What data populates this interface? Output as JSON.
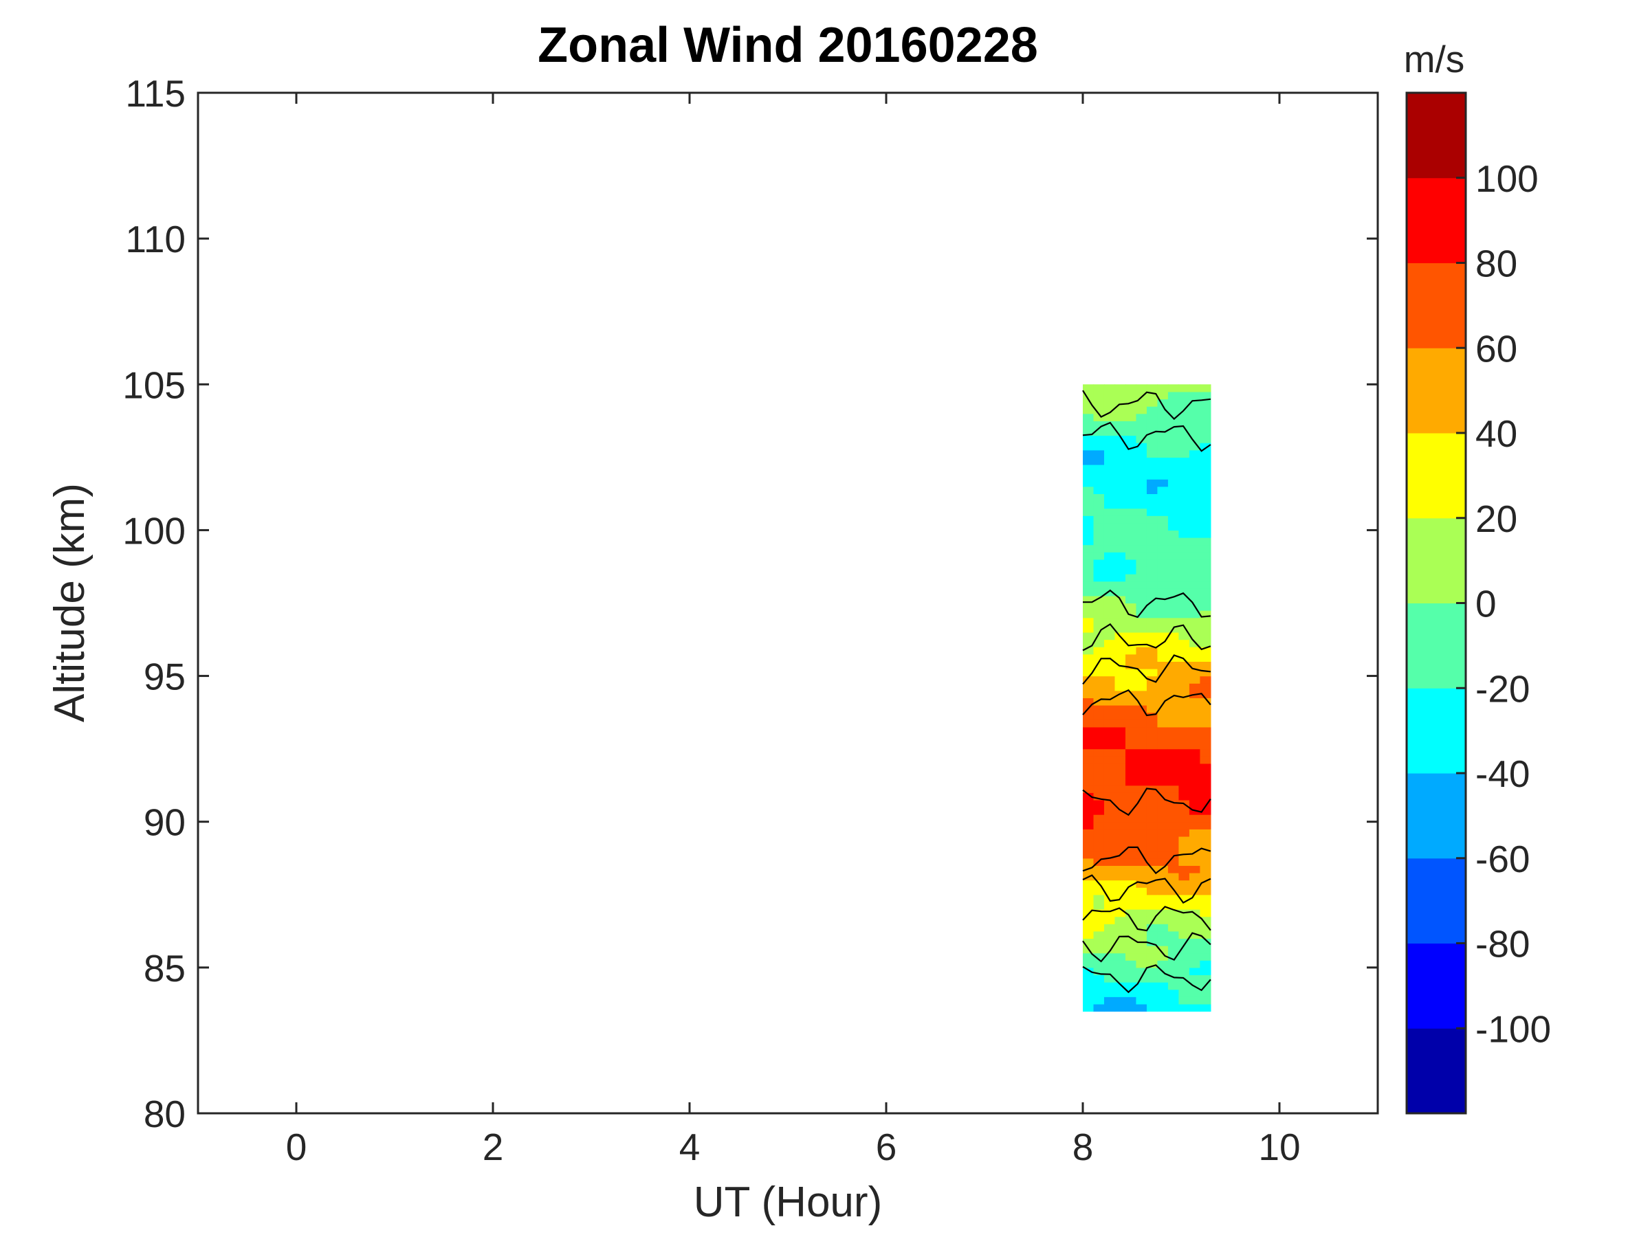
{
  "chart_data": {
    "type": "heatmap",
    "subtype": "filled-contour",
    "title": "Zonal Wind 20160228",
    "xlabel": "UT (Hour)",
    "ylabel": "Altitude (km)",
    "xlim": [
      -1,
      11
    ],
    "ylim": [
      80,
      115
    ],
    "xticks": [
      "0",
      "2",
      "4",
      "6",
      "8",
      "10"
    ],
    "yticks": [
      "80",
      "85",
      "90",
      "95",
      "100",
      "105",
      "110",
      "115"
    ],
    "grid": false,
    "colorbar": {
      "unit": "m/s",
      "range": [
        -120,
        120
      ],
      "ticks": [
        "-100",
        "-80",
        "-60",
        "-40",
        "-20",
        "0",
        "20",
        "40",
        "60",
        "80",
        "100"
      ],
      "levels": [
        {
          "min": -120,
          "max": -100,
          "color": "#0000aa"
        },
        {
          "min": -100,
          "max": -80,
          "color": "#0000ff"
        },
        {
          "min": -80,
          "max": -60,
          "color": "#0055ff"
        },
        {
          "min": -60,
          "max": -40,
          "color": "#00aaff"
        },
        {
          "min": -40,
          "max": -20,
          "color": "#00ffff"
        },
        {
          "min": -20,
          "max": 0,
          "color": "#55ffaa"
        },
        {
          "min": 0,
          "max": 20,
          "color": "#aaff55"
        },
        {
          "min": 20,
          "max": 40,
          "color": "#ffff00"
        },
        {
          "min": 40,
          "max": 60,
          "color": "#ffaa00"
        },
        {
          "min": 60,
          "max": 80,
          "color": "#ff5500"
        },
        {
          "min": 80,
          "max": 100,
          "color": "#ff0000"
        },
        {
          "min": 100,
          "max": 120,
          "color": "#aa0000"
        }
      ]
    },
    "data_extent": {
      "ut_start": 8.0,
      "ut_end": 9.3,
      "alt_bottom": 83.5,
      "alt_top": 105.0
    },
    "profile": [
      {
        "alt": 105,
        "wind": 10
      },
      {
        "alt": 104,
        "wind": -5
      },
      {
        "alt": 103,
        "wind": -25
      },
      {
        "alt": 102,
        "wind": -30
      },
      {
        "alt": 101,
        "wind": -25
      },
      {
        "alt": 100,
        "wind": -20
      },
      {
        "alt": 99,
        "wind": -15
      },
      {
        "alt": 98,
        "wind": -5
      },
      {
        "alt": 97,
        "wind": 5
      },
      {
        "alt": 96,
        "wind": 25
      },
      {
        "alt": 95,
        "wind": 45
      },
      {
        "alt": 94,
        "wind": 62
      },
      {
        "alt": 93,
        "wind": 72
      },
      {
        "alt": 92,
        "wind": 80
      },
      {
        "alt": 91,
        "wind": 82
      },
      {
        "alt": 90,
        "wind": 75
      },
      {
        "alt": 89,
        "wind": 65
      },
      {
        "alt": 88,
        "wind": 45
      },
      {
        "alt": 87,
        "wind": 25
      },
      {
        "alt": 86,
        "wind": 5
      },
      {
        "alt": 85,
        "wind": -15
      },
      {
        "alt": 84,
        "wind": -30
      },
      {
        "alt": 83.5,
        "wind": -35
      }
    ]
  }
}
